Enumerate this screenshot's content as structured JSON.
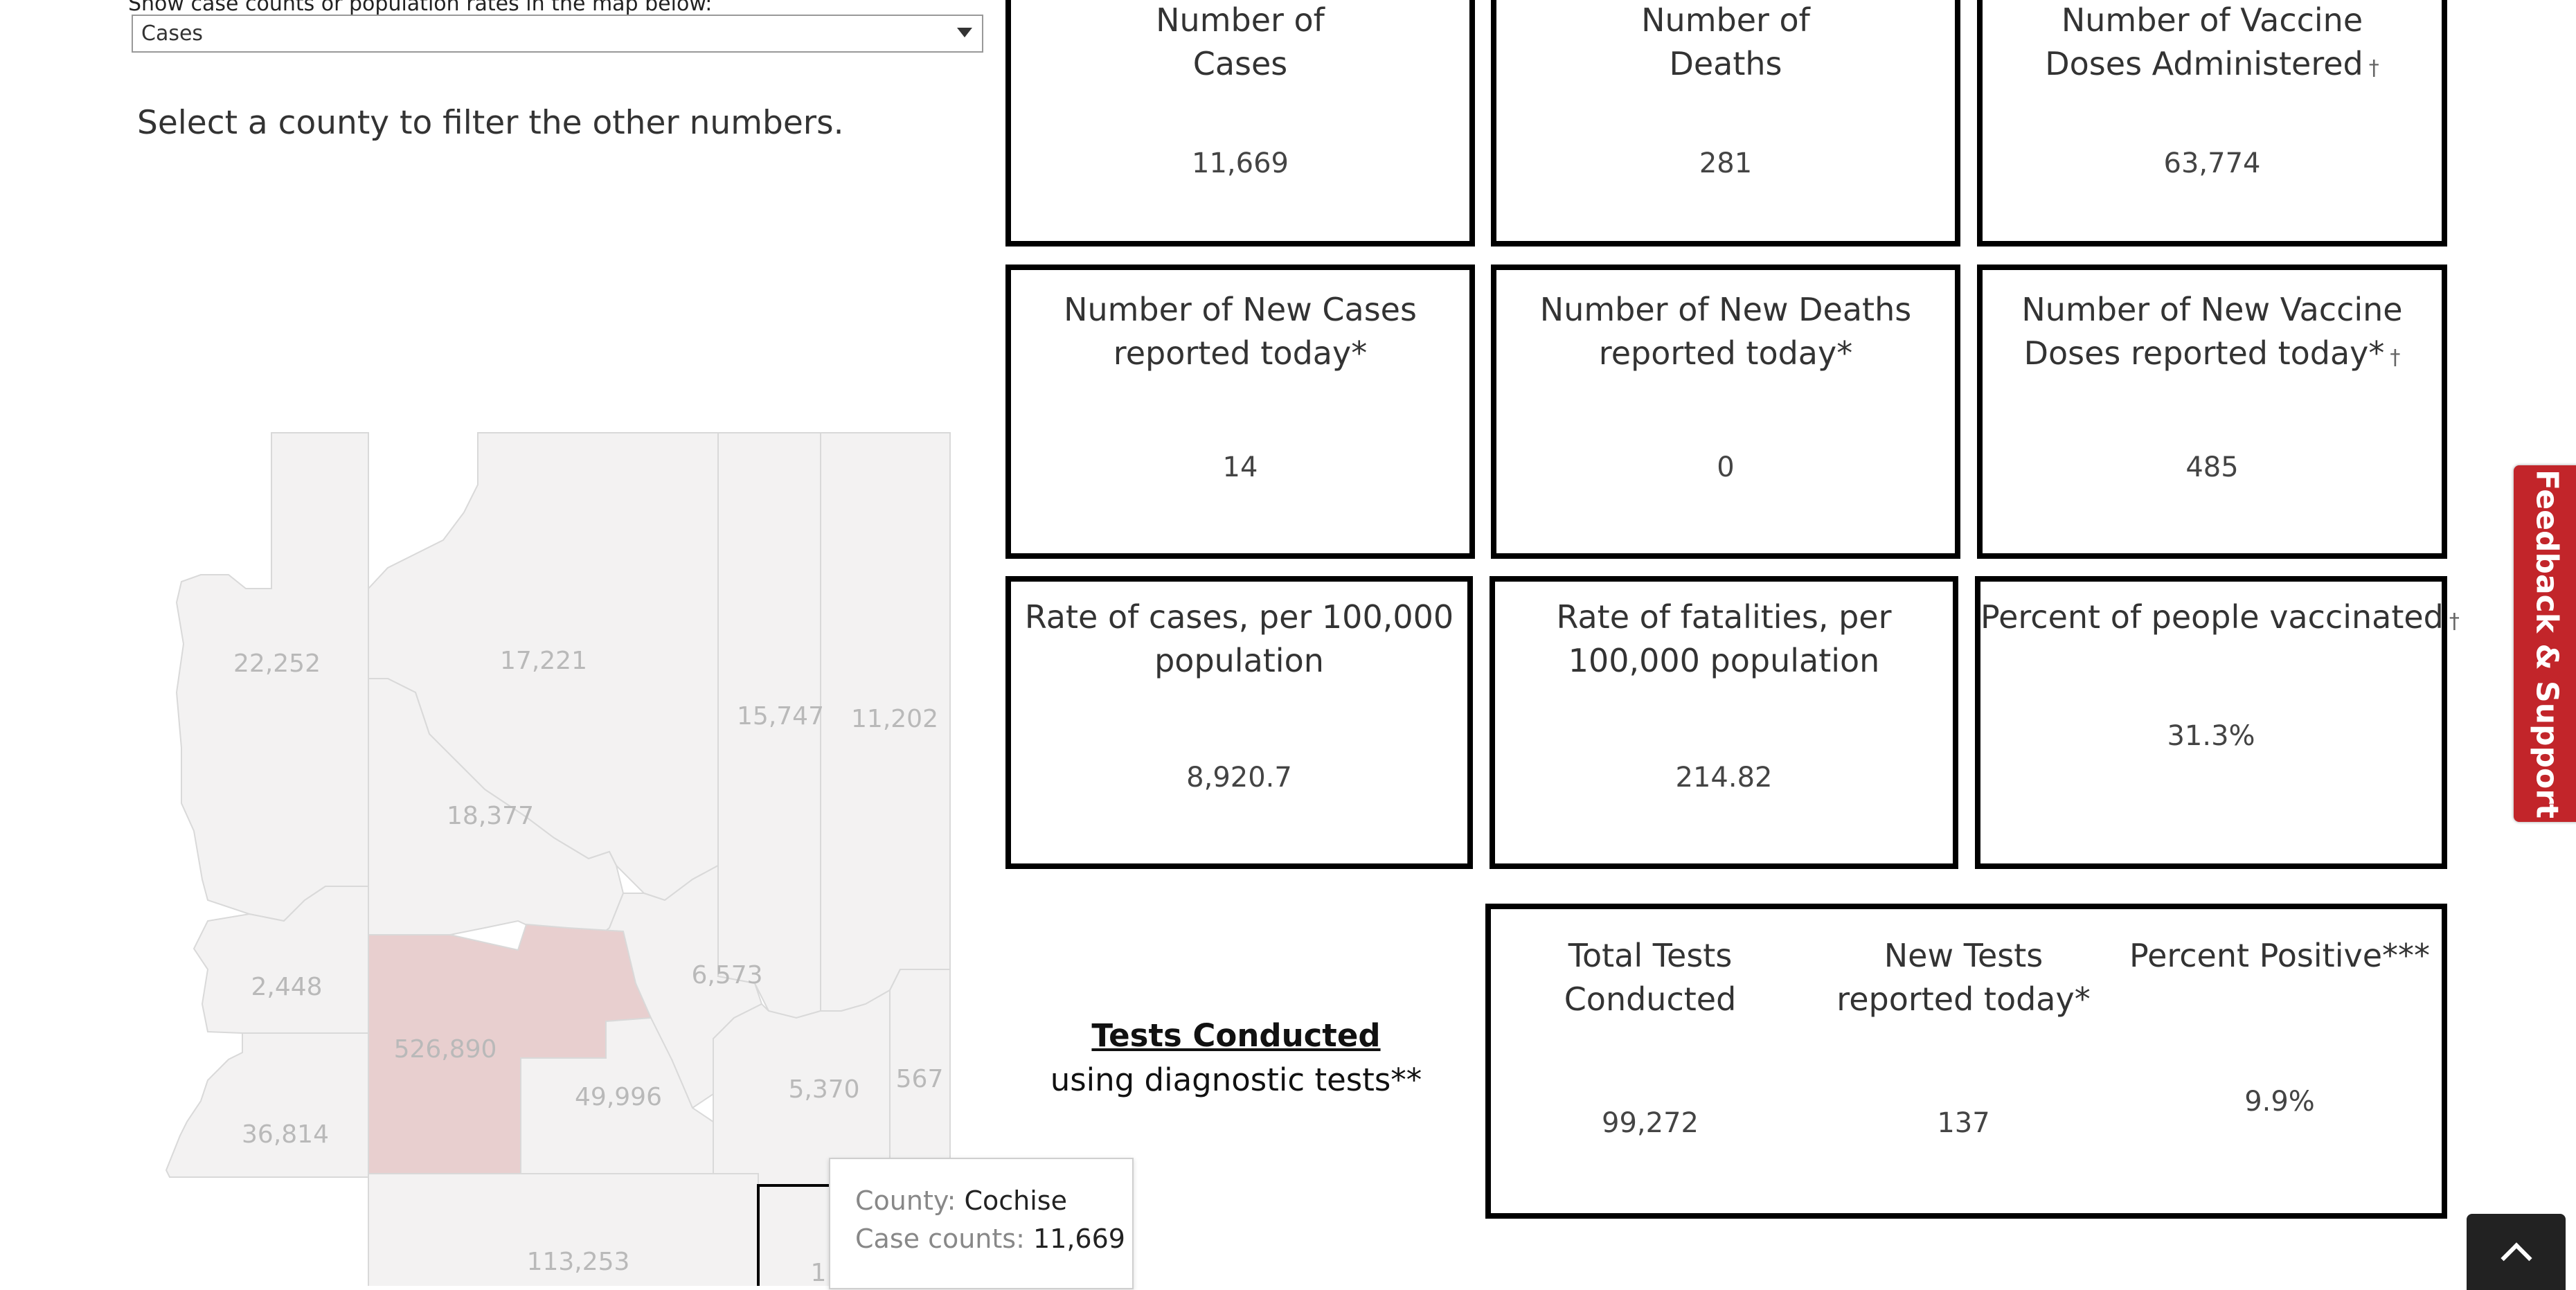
{
  "filter": {
    "clipped_label": "Show case counts or population rates in the map below:",
    "selected": "Cases"
  },
  "hint": "Select a county to filter the other numbers.",
  "map": {
    "counties": {
      "mohave": "22,252",
      "coconino": "17,221",
      "navajo": "15,747",
      "apache": "11,202",
      "yavapai": "18,377",
      "lapaz": "2,448",
      "gila": "6,573",
      "maricopa": "526,890",
      "yuma": "36,814",
      "pinal": "49,996",
      "graham": "5,370",
      "greenlee": "567",
      "pima": "113,253",
      "cochise": "1…"
    },
    "colors": {
      "county": "#f3f2f2",
      "border": "#d9d9d9",
      "maricopa": "#e8cfcf",
      "selected_outline": "#000000"
    }
  },
  "cards": {
    "cases": {
      "title1": "Number of",
      "title2": "Cases",
      "value": "11,669"
    },
    "deaths": {
      "title1": "Number of",
      "title2": "Deaths",
      "value": "281"
    },
    "vaccines": {
      "title1": "Number of Vaccine",
      "title2": "Doses Administered",
      "dagger": "†",
      "value": "63,774"
    },
    "new_cases": {
      "title1": "Number of New Cases",
      "title2": "reported today*",
      "value": "14"
    },
    "new_deaths": {
      "title1": "Number of New Deaths",
      "title2": "reported today*",
      "value": "0"
    },
    "new_vaccines": {
      "title1": "Number of New Vaccine",
      "title2": "Doses reported today*",
      "dagger": "†",
      "value": "485"
    },
    "case_rate": {
      "title1": "Rate of cases, per 100,000",
      "title2": "population",
      "value": "8,920.7"
    },
    "fatality_rate": {
      "title1": "Rate of fatalities, per",
      "title2": "100,000 population",
      "value": "214.82"
    },
    "pct_vaccinated": {
      "title1": "Percent of people vaccinated",
      "dagger": "†",
      "value": "31.3%"
    }
  },
  "tests": {
    "label_underlined": "Tests Conducted",
    "label_sub": "using diagnostic tests**",
    "total": {
      "title1": "Total Tests",
      "title2": "Conducted",
      "value": "99,272"
    },
    "new": {
      "title1": "New Tests",
      "title2": "reported today*",
      "value": "137"
    },
    "positive": {
      "title1": "Percent Positive***",
      "value": "9.9%"
    }
  },
  "tooltip": {
    "county_key": "County:",
    "county_val": "Cochise",
    "count_key": "Case counts:",
    "count_val": "11,669"
  },
  "feedback_label": "Feedback & Support",
  "icons": {
    "scroll_top": "chevron-up-icon",
    "dropdown": "caret-down-icon"
  }
}
